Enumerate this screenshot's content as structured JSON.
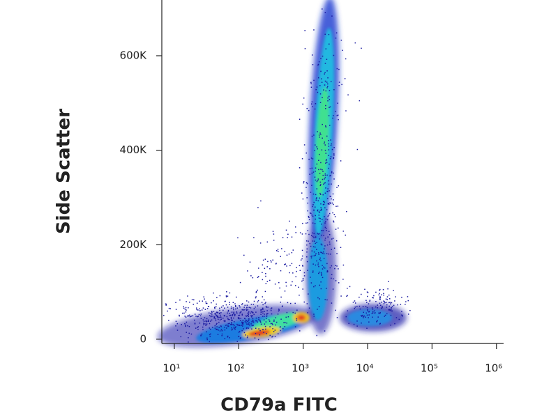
{
  "chart_data": {
    "type": "density",
    "x_label": "CD79a FITC",
    "y_label": "Side Scatter",
    "xscale": "log",
    "xlim": [
      6.4,
      1290000
    ],
    "xticks": [
      {
        "value": 10,
        "label": "10¹"
      },
      {
        "value": 100,
        "label": "10²"
      },
      {
        "value": 1000,
        "label": "10³"
      },
      {
        "value": 10000,
        "label": "10⁴"
      },
      {
        "value": 100000,
        "label": "10⁵"
      },
      {
        "value": 1000000,
        "label": "10⁶"
      }
    ],
    "ylim": [
      -9000,
      718000
    ],
    "yticks": [
      {
        "value": 0,
        "label": "0"
      },
      {
        "value": 200000,
        "label": "200K"
      },
      {
        "value": 400000,
        "label": "400K"
      },
      {
        "value": 600000,
        "label": "600K"
      }
    ]
  }
}
